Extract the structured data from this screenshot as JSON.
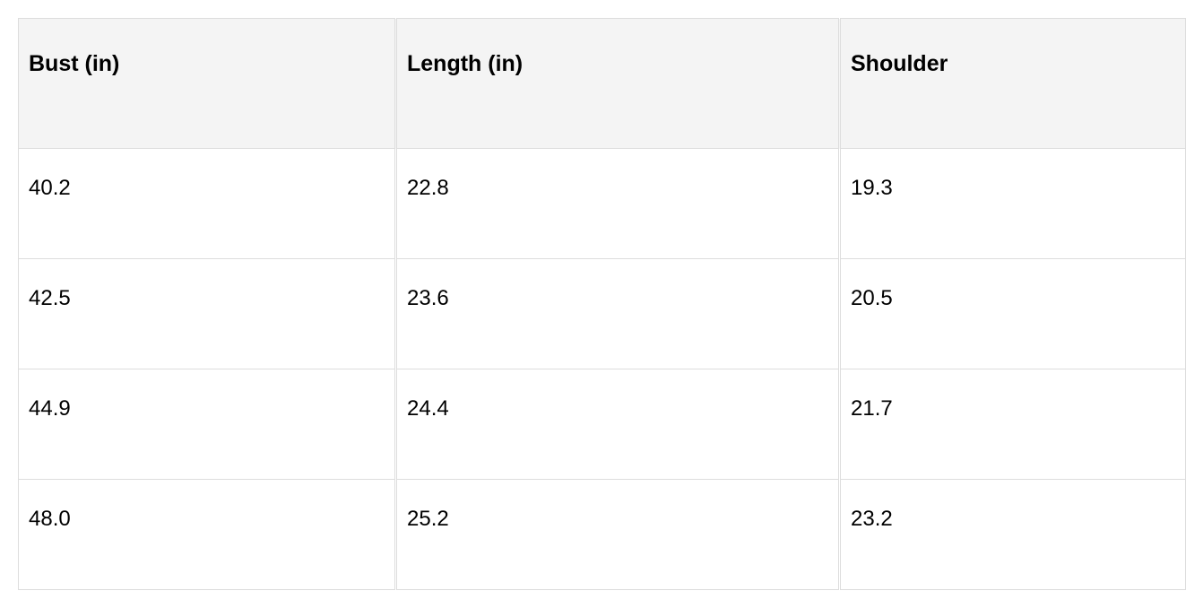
{
  "table": {
    "headers": [
      "Bust (in)",
      "Length (in)",
      "Shoulder"
    ],
    "rows": [
      [
        "40.2",
        "22.8",
        "19.3"
      ],
      [
        "42.5",
        "23.6",
        "20.5"
      ],
      [
        "44.9",
        "24.4",
        "21.7"
      ],
      [
        "48.0",
        "25.2",
        "23.2"
      ]
    ]
  }
}
